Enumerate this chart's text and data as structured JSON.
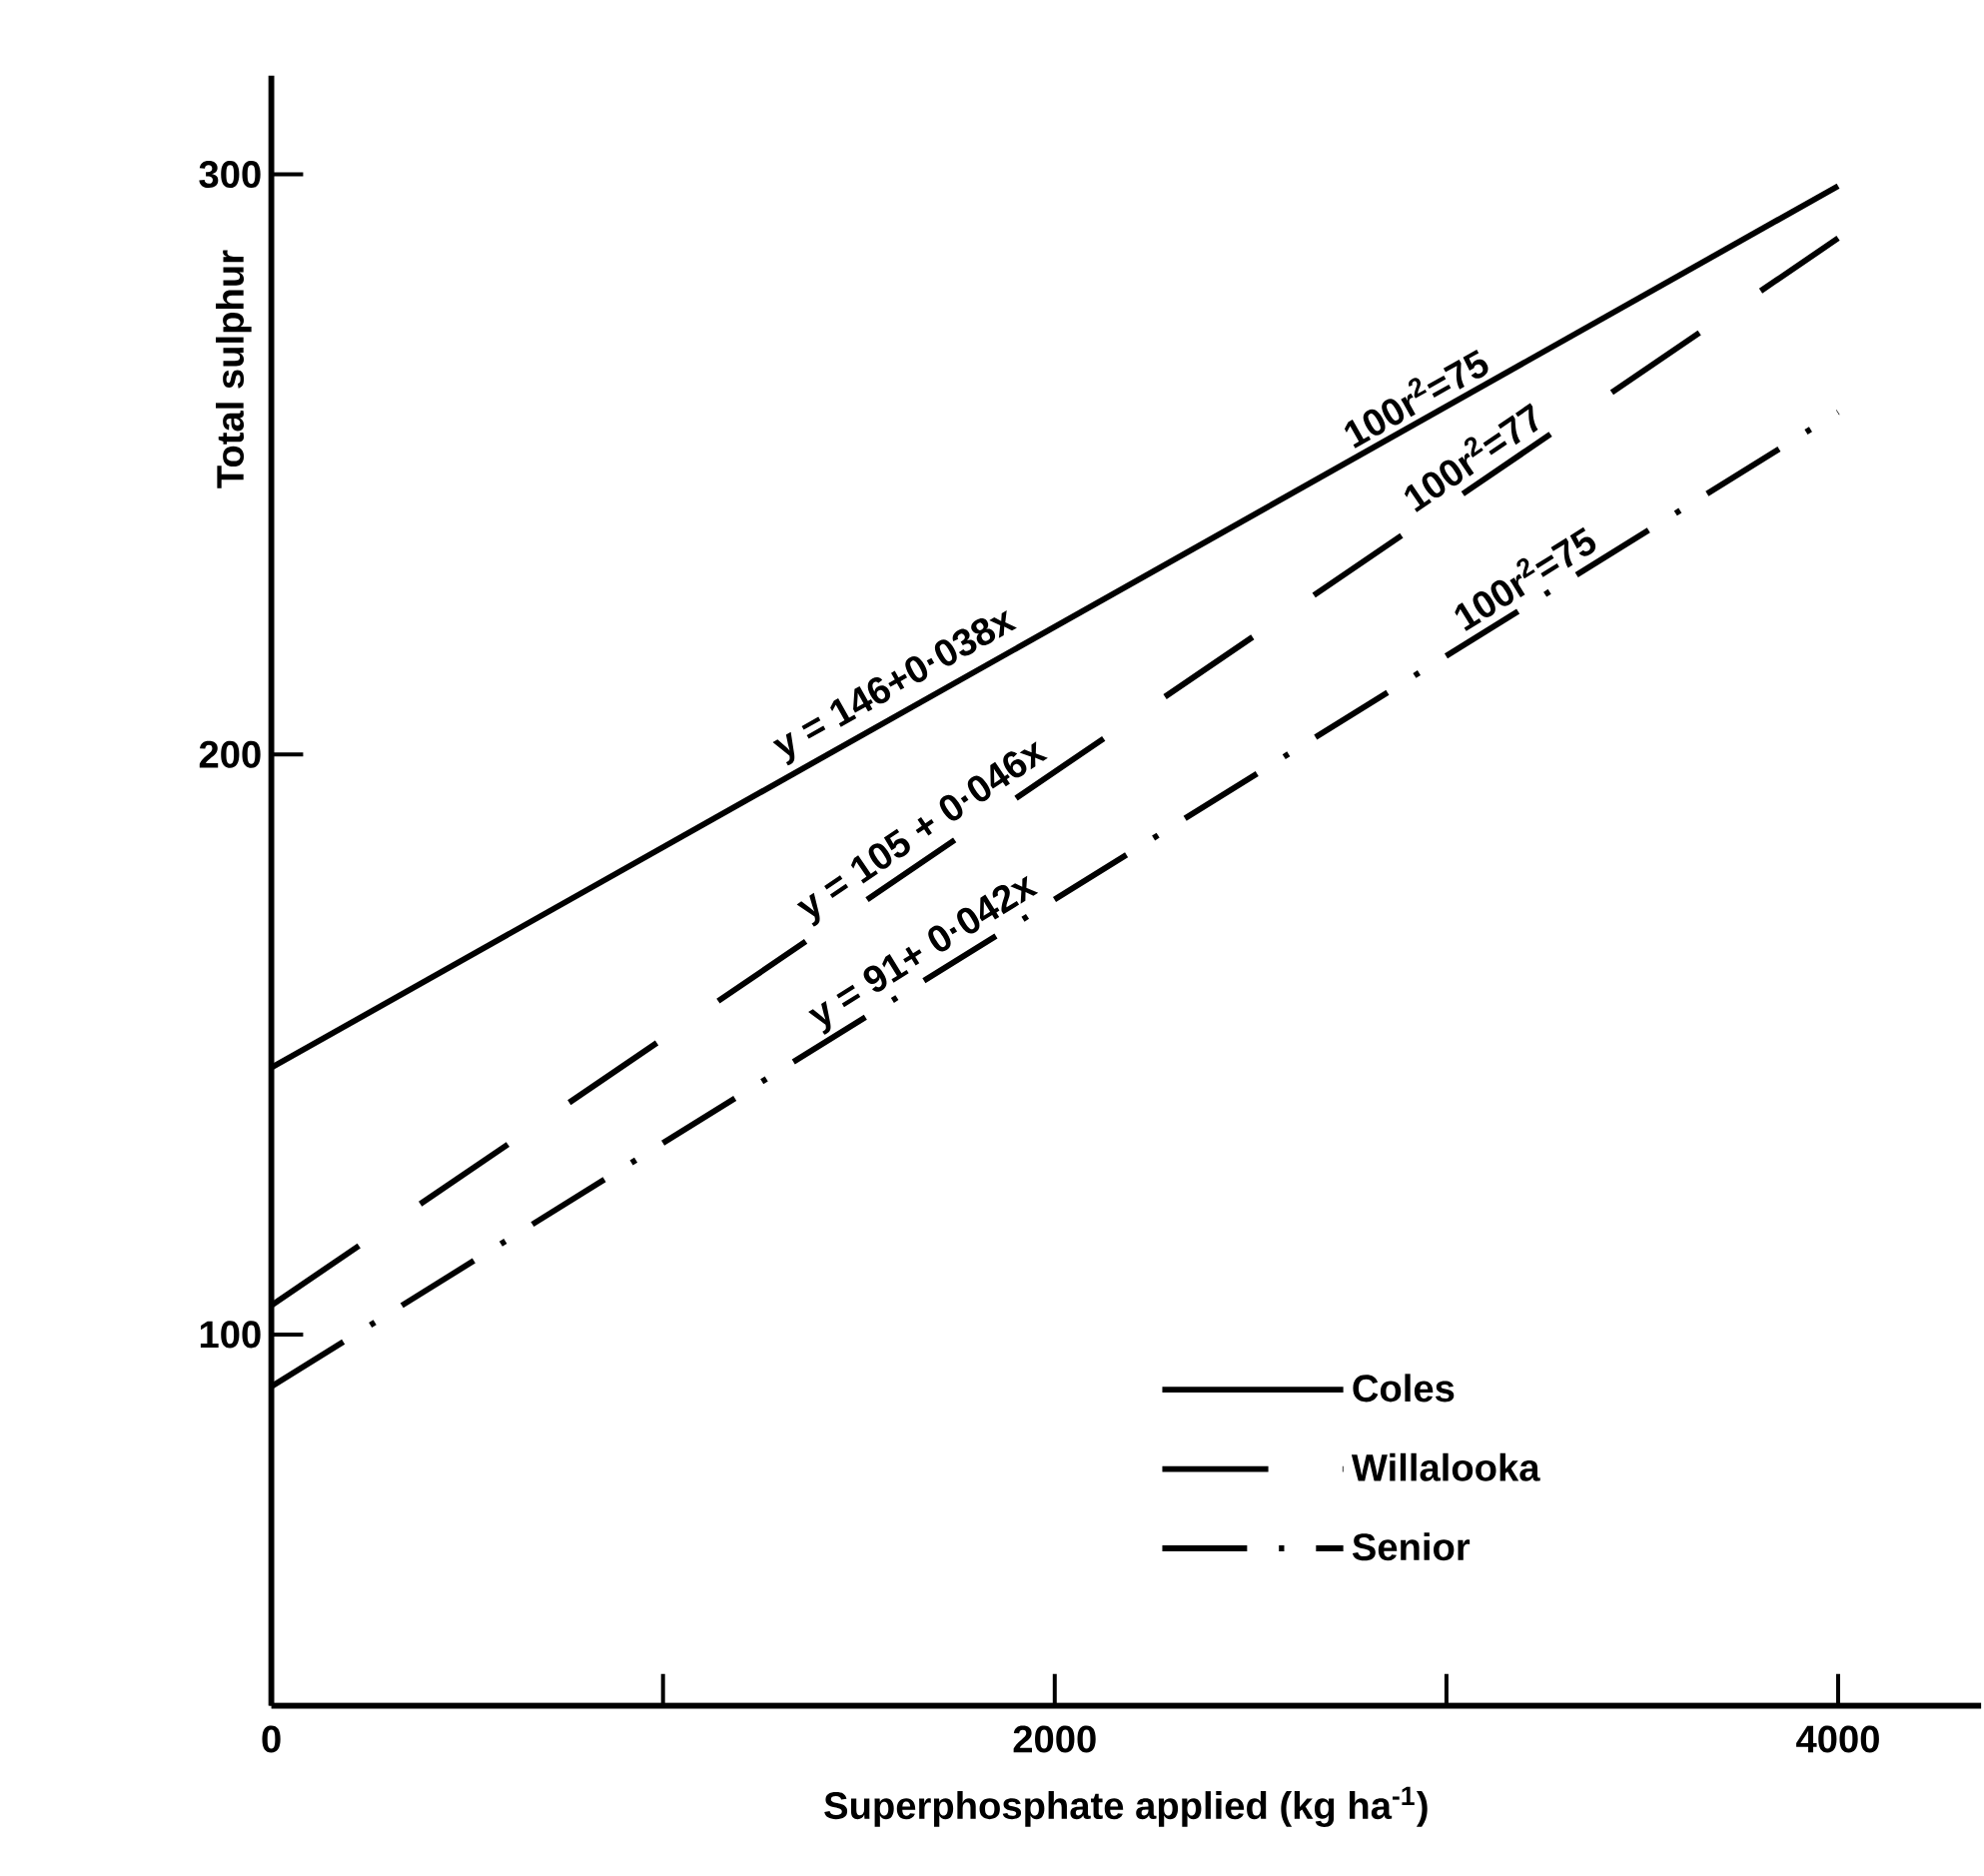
{
  "chart_data": {
    "type": "line",
    "xlabel": "Superphosphate applied (kg ha$^{-1}$)",
    "ylabel": "Total sulphur",
    "xlim": [
      0,
      4365
    ],
    "ylim": [
      36,
      317
    ],
    "xticks": [
      0,
      {
        "value": 1000,
        "label": null
      },
      2000,
      {
        "value": 3000,
        "label": null
      },
      4000
    ],
    "yticks": [
      100,
      200,
      300
    ],
    "x": [
      0,
      4000
    ],
    "grid": false,
    "legend": "bottom right",
    "marker": "none",
    "series": [
      {
        "name": "Coles",
        "color": "#000000",
        "line_style": "solid",
        "values": [
          146,
          298
        ]
      },
      {
        "name": "Willalooka",
        "color": "#000000",
        "line_style": "dashed",
        "values": [
          105,
          289
        ]
      },
      {
        "name": "Senior",
        "color": "#000000",
        "line_style": "dashdot",
        "values": [
          91,
          259
        ]
      }
    ],
    "annotations": [
      {
        "text": "y = 146+0·038x",
        "x": 1625,
        "y": 208
      },
      {
        "text": "100r$^{2}$=75",
        "x": 2950,
        "y": 258
      },
      {
        "text": "y = 105 + 0·046x",
        "x": 1700,
        "y": 183
      },
      {
        "text": "100r$^{2}$=77",
        "x": 3100,
        "y": 248
      },
      {
        "text": "y = 91+ 0·042x",
        "x": 1700,
        "y": 162
      },
      {
        "text": "100r$^{2}$=75",
        "x": 3230,
        "y": 227
      }
    ]
  }
}
